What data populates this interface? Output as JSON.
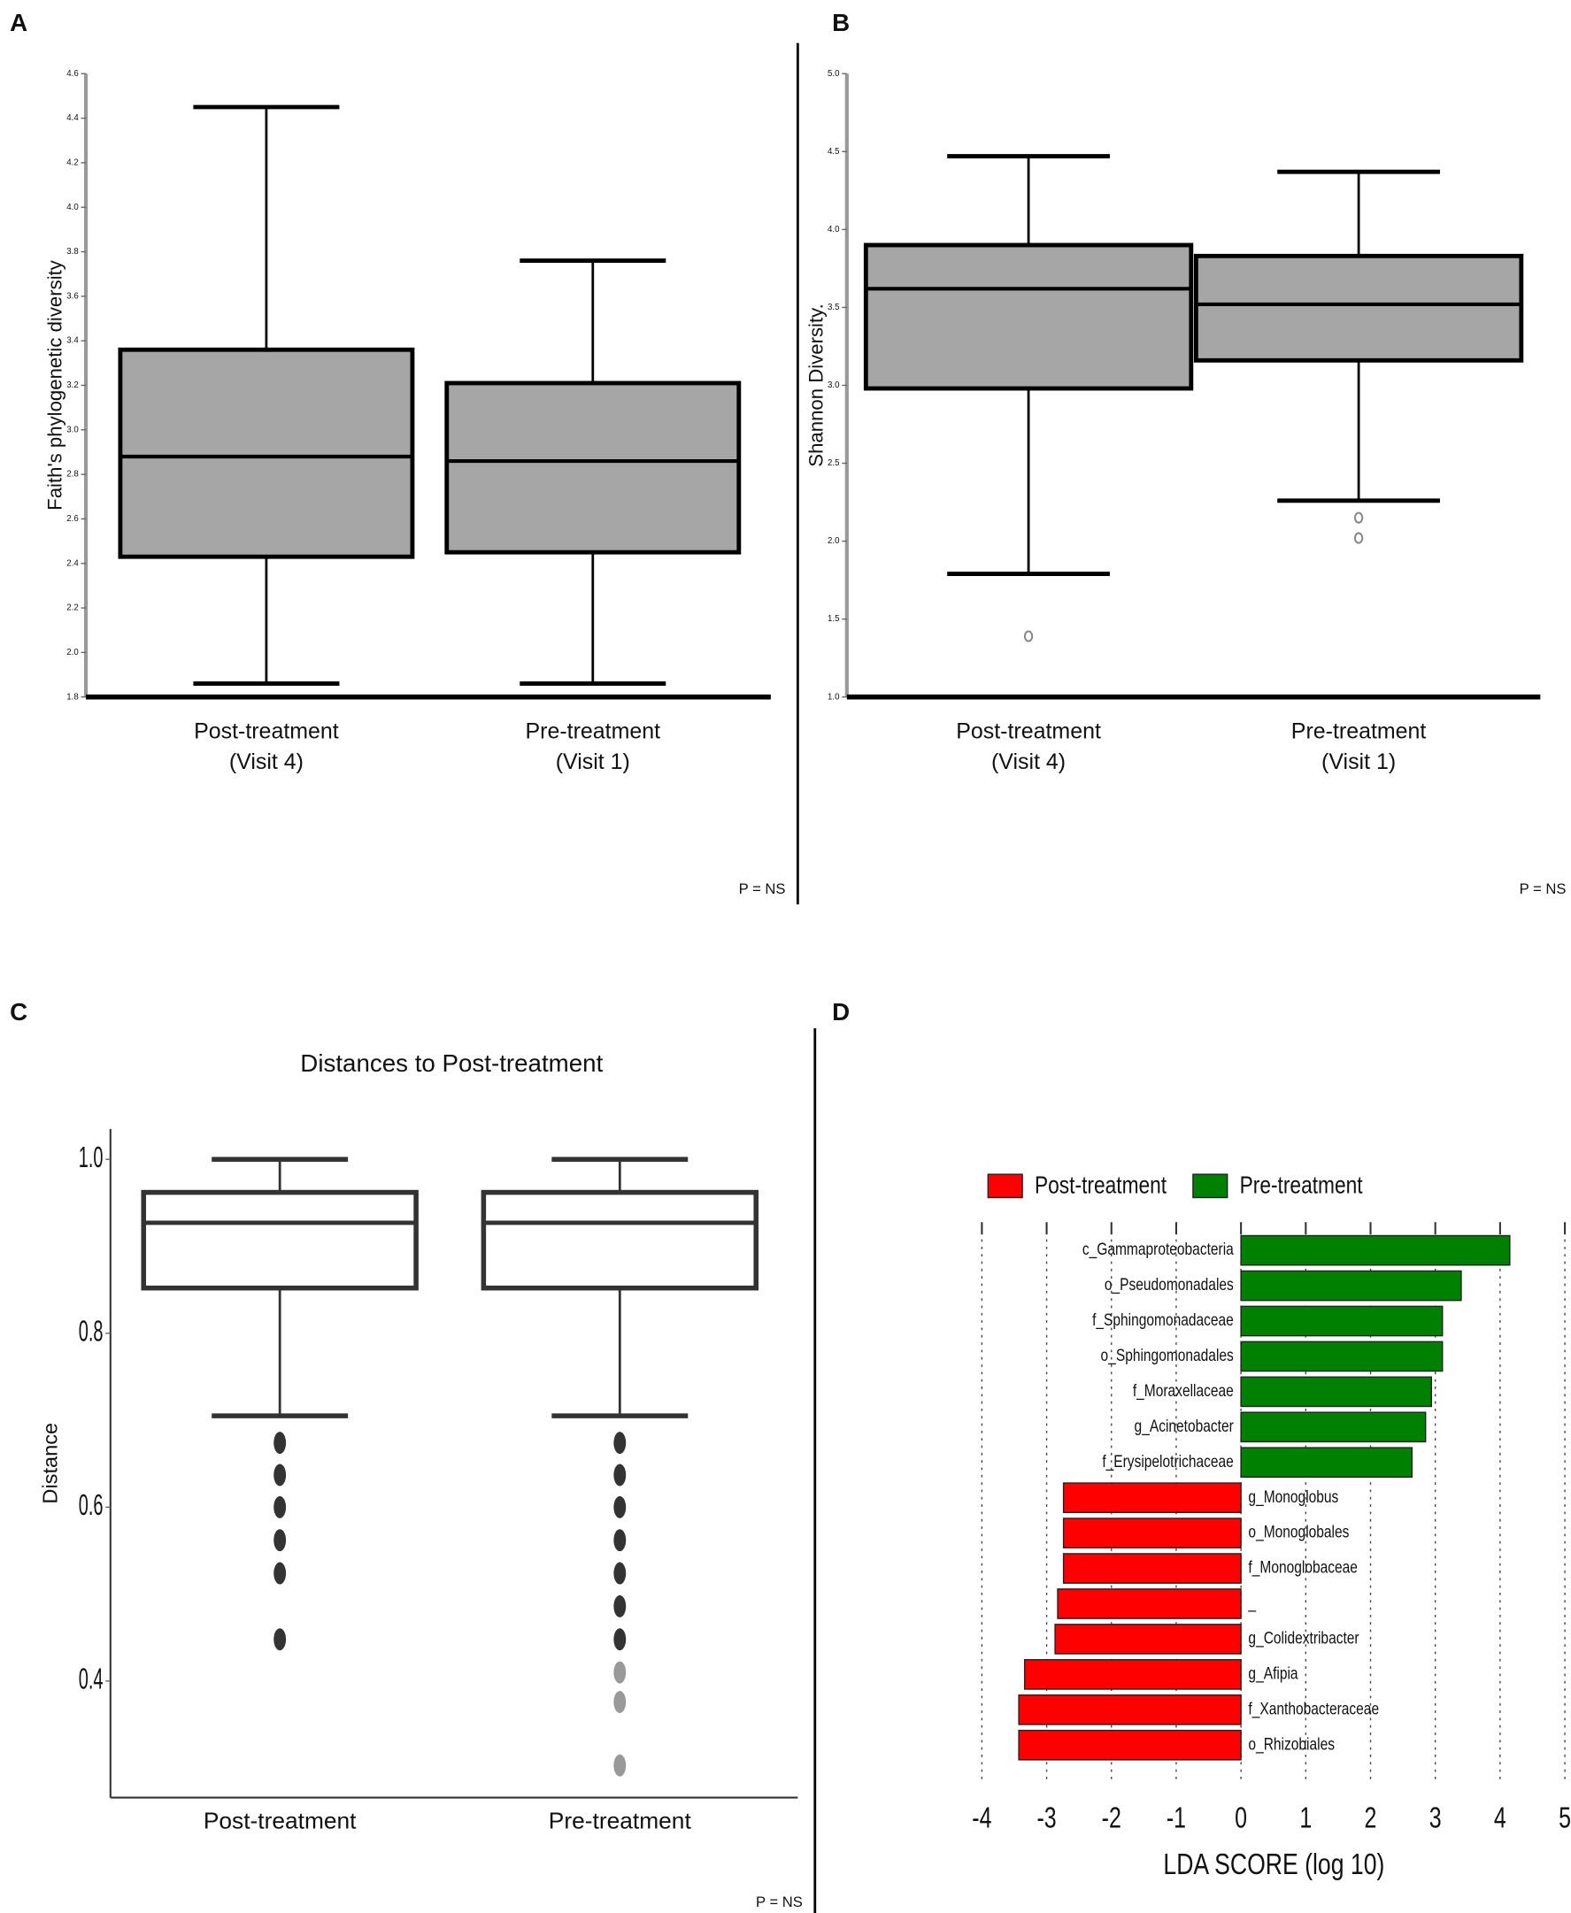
{
  "chart_data": [
    {
      "type": "box",
      "label": "A",
      "ylabel": "Faith's phylogenetic diversity",
      "note": "P = NS",
      "categories": [
        [
          "Post-treatment",
          "(Visit 4)"
        ],
        [
          "Pre-treatment",
          "(Visit 1)"
        ]
      ],
      "boxes": [
        {
          "whislo": 1.86,
          "q1": 2.43,
          "med": 2.88,
          "q3": 3.36,
          "whishi": 4.45,
          "fliers": []
        },
        {
          "whislo": 1.86,
          "q1": 2.45,
          "med": 2.86,
          "q3": 3.21,
          "whishi": 3.76,
          "fliers": []
        }
      ],
      "box_color": "#a6a6a6",
      "ylim": [
        1.8,
        4.6
      ],
      "yticks": [
        {
          "value": 1.8,
          "label": "1.8"
        },
        {
          "value": 2.0,
          "label": "2.0"
        },
        2.2,
        2.4,
        2.6,
        2.8,
        {
          "value": 3.0,
          "label": "3.0"
        },
        3.2,
        3.4,
        3.6,
        3.8,
        {
          "value": 4.0,
          "label": "4.0"
        },
        4.2,
        4.4,
        4.6
      ]
    },
    {
      "type": "box",
      "label": "B",
      "ylabel": "Shannon Diversity.",
      "note": "P = NS",
      "categories": [
        [
          "Post-treatment",
          "(Visit 4)"
        ],
        [
          "Pre-treatment",
          "(Visit 1)"
        ]
      ],
      "boxes": [
        {
          "whislo": 1.79,
          "q1": 2.98,
          "med": 3.62,
          "q3": 3.9,
          "whishi": 4.47,
          "fliers": [
            1.39
          ]
        },
        {
          "whislo": 2.26,
          "q1": 3.16,
          "med": 3.52,
          "q3": 3.83,
          "whishi": 4.37,
          "fliers": [
            2.15,
            2.02
          ]
        }
      ],
      "box_color": "#a6a6a6",
      "ylim": [
        1.0,
        5.0
      ],
      "yticks": [
        {
          "value": 1.0,
          "label": "1.0"
        },
        1.5,
        {
          "value": 2.0,
          "label": "2.0"
        },
        2.5,
        {
          "value": 3.0,
          "label": "3.0"
        },
        3.5,
        {
          "value": 4.0,
          "label": "4.0"
        },
        4.5,
        {
          "value": 5.0,
          "label": "5.0"
        }
      ]
    },
    {
      "type": "box",
      "label": "C",
      "title": "Distances to Post-treatment",
      "ylabel": "Distance",
      "note": "P = NS",
      "categories": [
        [
          "Post-treatment"
        ],
        [
          "Pre-treatment"
        ]
      ],
      "boxes": [
        {
          "whislo": 0.705,
          "q1": 0.852,
          "med": 0.927,
          "q3": 0.962,
          "whishi": 1.0,
          "fliers": [
            0.674,
            0.637,
            0.6,
            0.562,
            0.524,
            0.448
          ]
        },
        {
          "whislo": 0.705,
          "q1": 0.852,
          "med": 0.927,
          "q3": 0.962,
          "whishi": 1.0,
          "fliers": [
            0.674,
            0.637,
            0.6,
            0.562,
            0.524,
            0.486,
            0.448,
            0.41,
            0.376,
            0.303
          ]
        }
      ],
      "box_color": "#ffffff",
      "ylim": [
        0.266,
        1.035
      ],
      "yticks": [
        0.4,
        0.6,
        0.8,
        {
          "value": 1.0,
          "label": "1.0"
        }
      ]
    },
    {
      "type": "hbar",
      "label": "D",
      "xlabel": "LDA SCORE (log 10)",
      "categories": [
        "c_Gammaproteobacteria",
        "o_Pseudomonadales",
        "f_Sphingomonadaceae",
        "o_Sphingomonadales",
        "f_Moraxellaceae",
        "g_Acinetobacter",
        "f_Erysipelotrichaceae",
        "g_Monoglobus",
        "o_Monoglobales",
        "f_Monoglobaceae",
        "_",
        "g_Colidextribacter",
        "g_Afipia",
        "f_Xanthobacteraceae",
        "o_Rhizobiales"
      ],
      "series": [
        {
          "name": "Post-treatment",
          "color": "#ff0000",
          "values": [
            null,
            null,
            null,
            null,
            null,
            null,
            null,
            -2.74,
            -2.74,
            -2.74,
            -2.83,
            -2.87,
            -3.34,
            -3.43,
            -3.43
          ]
        },
        {
          "name": "Pre-treatment",
          "color": "#008000",
          "values": [
            4.15,
            3.4,
            3.11,
            3.11,
            2.94,
            2.85,
            2.64,
            null,
            null,
            null,
            null,
            null,
            null,
            null,
            null
          ]
        }
      ],
      "xlim": [
        -4,
        5
      ],
      "xticks": [
        -4,
        -3,
        -2,
        -1,
        0,
        1,
        2,
        3,
        4,
        5
      ],
      "grid": true
    }
  ]
}
